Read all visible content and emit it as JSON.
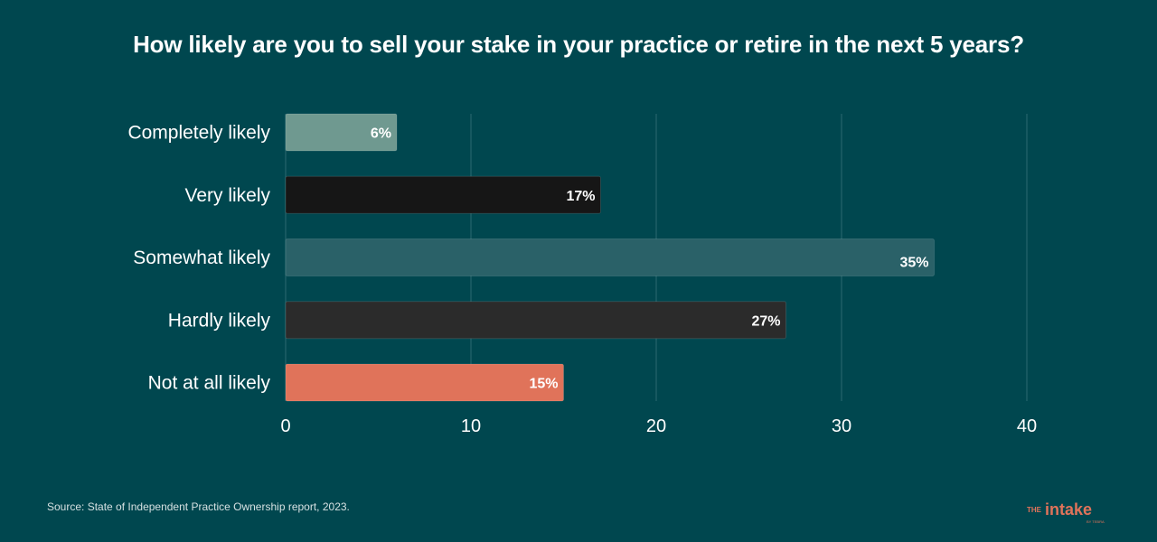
{
  "chart_data": {
    "type": "bar",
    "orientation": "horizontal",
    "title": "How likely are you to sell your stake in your practice or retire in the next 5 years?",
    "categories": [
      "Completely likely",
      "Very likely",
      "Somewhat likely",
      "Hardly likely",
      "Not at all likely"
    ],
    "values": [
      6,
      17,
      35,
      27,
      15
    ],
    "value_labels": [
      "6%",
      "17%",
      "35%",
      "27%",
      "15%"
    ],
    "bar_colors": [
      "#6f9990",
      "#161616",
      "#2a6168",
      "#2b2b2b",
      "#e0735a"
    ],
    "xlim": [
      0,
      40
    ],
    "xticks": [
      0,
      10,
      20,
      30,
      40
    ],
    "xtick_labels": [
      "0",
      "10",
      "20",
      "30",
      "40"
    ],
    "grid": true,
    "xlabel": "",
    "ylabel": ""
  },
  "footer": {
    "source": "Source: State of Independent Practice Ownership report, 2023."
  },
  "logo": {
    "prefix": "THE",
    "name": "intake",
    "suffix": "BY TEBRA",
    "color": "#e0735a"
  }
}
